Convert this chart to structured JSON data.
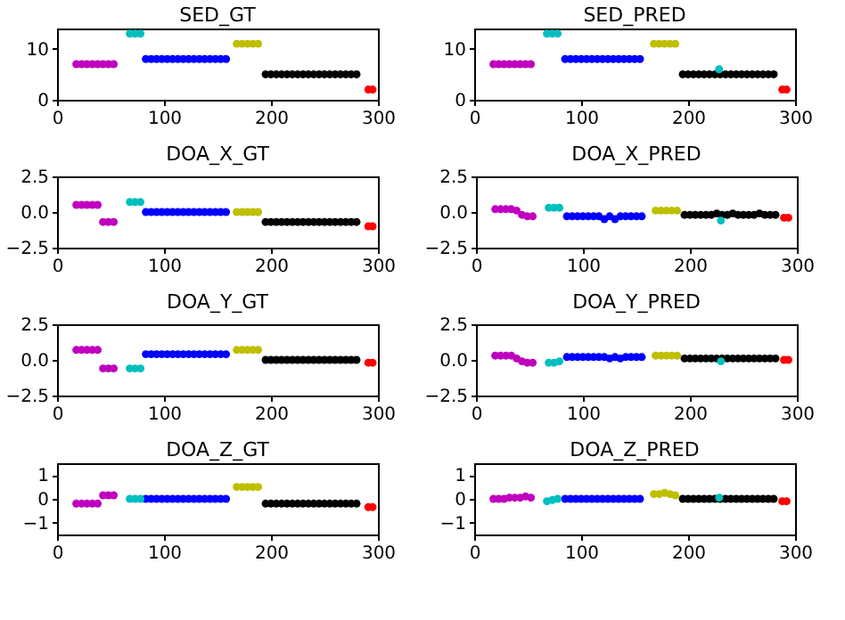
{
  "chart_data": [
    {
      "type": "scatter",
      "title": "SED_GT",
      "marker": "circle",
      "xlim": [
        0,
        300
      ],
      "xticks": [
        0,
        100,
        200,
        300
      ],
      "ylim": [
        0,
        14
      ],
      "yticks": [
        0,
        10
      ],
      "series": [
        {
          "color": "#bf00bf",
          "x": [
            18,
            23,
            28,
            33,
            38,
            43,
            48,
            53
          ],
          "values": [
            7,
            7,
            7,
            7,
            7,
            7,
            7,
            7
          ]
        },
        {
          "color": "#00bfbf",
          "x": [
            68,
            73,
            78
          ],
          "values": [
            13,
            13,
            13
          ]
        },
        {
          "color": "#0000ff",
          "x": [
            83,
            88,
            93,
            98,
            103,
            108,
            113,
            118,
            123,
            128,
            133,
            138,
            143,
            148,
            153,
            158
          ],
          "values": [
            8,
            8,
            8,
            8,
            8,
            8,
            8,
            8,
            8,
            8,
            8,
            8,
            8,
            8,
            8,
            8
          ]
        },
        {
          "color": "#bfbf00",
          "x": [
            168,
            173,
            178,
            183,
            188
          ],
          "values": [
            11,
            11,
            11,
            11,
            11
          ]
        },
        {
          "color": "#000000",
          "x": [
            195,
            200,
            205,
            210,
            215,
            220,
            225,
            230,
            235,
            240,
            245,
            250,
            255,
            260,
            265,
            270,
            275,
            280
          ],
          "values": [
            5,
            5,
            5,
            5,
            5,
            5,
            5,
            5,
            5,
            5,
            5,
            5,
            5,
            5,
            5,
            5,
            5,
            5
          ]
        },
        {
          "color": "#ff0000",
          "x": [
            291,
            295
          ],
          "values": [
            2,
            2
          ]
        }
      ]
    },
    {
      "type": "scatter",
      "title": "SED_PRED",
      "marker": "circle",
      "xlim": [
        0,
        300
      ],
      "xticks": [
        0,
        100,
        200,
        300
      ],
      "ylim": [
        0,
        14
      ],
      "yticks": [
        0,
        10
      ],
      "series": [
        {
          "color": "#bf00bf",
          "x": [
            18,
            23,
            28,
            33,
            38,
            43,
            48,
            53
          ],
          "values": [
            7,
            7,
            7,
            7,
            7,
            7,
            7,
            7
          ]
        },
        {
          "color": "#00bfbf",
          "x": [
            68,
            73,
            78,
            229
          ],
          "values": [
            13,
            13,
            13,
            6
          ]
        },
        {
          "color": "#0000ff",
          "x": [
            85,
            90,
            95,
            100,
            105,
            110,
            115,
            120,
            125,
            130,
            135,
            140,
            145,
            150,
            155
          ],
          "values": [
            8,
            8,
            8,
            8,
            8,
            8,
            8,
            8,
            8,
            8,
            8,
            8,
            8,
            8,
            8
          ]
        },
        {
          "color": "#bfbf00",
          "x": [
            168,
            173,
            178,
            183,
            188
          ],
          "values": [
            11,
            11,
            11,
            11,
            11
          ]
        },
        {
          "color": "#000000",
          "x": [
            195,
            200,
            205,
            210,
            215,
            220,
            225,
            230,
            235,
            240,
            245,
            250,
            255,
            260,
            265,
            270,
            275,
            280
          ],
          "values": [
            5,
            5,
            5,
            5,
            5,
            5,
            5,
            5,
            5,
            5,
            5,
            5,
            5,
            5,
            5,
            5,
            5,
            5
          ]
        },
        {
          "color": "#ff0000",
          "x": [
            288,
            292
          ],
          "values": [
            2,
            2
          ]
        }
      ]
    },
    {
      "type": "scatter",
      "title": "DOA_X_GT",
      "marker": "circle",
      "xlim": [
        0,
        300
      ],
      "xticks": [
        0,
        100,
        200,
        300
      ],
      "ylim": [
        -2.5,
        2.5
      ],
      "yticks": [
        {
          "value": -2.5,
          "label": "−2.5"
        },
        {
          "value": 0,
          "label": "0.0"
        },
        {
          "value": 2.5,
          "label": "2.5"
        }
      ],
      "series": [
        {
          "color": "#bf00bf",
          "x": [
            18,
            23,
            28,
            33,
            38,
            43,
            48,
            53
          ],
          "values": [
            0.5,
            0.5,
            0.5,
            0.5,
            0.5,
            -0.7,
            -0.7,
            -0.7
          ]
        },
        {
          "color": "#00bfbf",
          "x": [
            68,
            73,
            78
          ],
          "values": [
            0.7,
            0.7,
            0.7
          ]
        },
        {
          "color": "#0000ff",
          "x": [
            83,
            88,
            93,
            98,
            103,
            108,
            113,
            118,
            123,
            128,
            133,
            138,
            143,
            148,
            153,
            158
          ],
          "values": [
            0,
            0,
            0,
            0,
            0,
            0,
            0,
            0,
            0,
            0,
            0,
            0,
            0,
            0,
            0,
            0
          ]
        },
        {
          "color": "#bfbf00",
          "x": [
            168,
            173,
            178,
            183,
            188
          ],
          "values": [
            0,
            0,
            0,
            0,
            0
          ]
        },
        {
          "color": "#000000",
          "x": [
            195,
            200,
            205,
            210,
            215,
            220,
            225,
            230,
            235,
            240,
            245,
            250,
            255,
            260,
            265,
            270,
            275,
            280
          ],
          "values": [
            -0.7,
            -0.7,
            -0.7,
            -0.7,
            -0.7,
            -0.7,
            -0.7,
            -0.7,
            -0.7,
            -0.7,
            -0.7,
            -0.7,
            -0.7,
            -0.7,
            -0.7,
            -0.7,
            -0.7,
            -0.7
          ]
        },
        {
          "color": "#ff0000",
          "x": [
            291,
            295
          ],
          "values": [
            -1,
            -1
          ]
        }
      ]
    },
    {
      "type": "scatter",
      "title": "DOA_X_PRED",
      "marker": "circle",
      "xlim": [
        0,
        300
      ],
      "xticks": [
        0,
        100,
        200,
        300
      ],
      "ylim": [
        -2.5,
        2.5
      ],
      "yticks": [
        {
          "value": -2.5,
          "label": "−2.5"
        },
        {
          "value": 0,
          "label": "0.0"
        },
        {
          "value": 2.5,
          "label": "2.5"
        }
      ],
      "series": [
        {
          "color": "#bf00bf",
          "x": [
            18,
            23,
            28,
            33,
            38,
            43,
            48,
            53
          ],
          "values": [
            0.2,
            0.2,
            0.2,
            0.2,
            0.1,
            -0.2,
            -0.3,
            -0.3
          ]
        },
        {
          "color": "#00bfbf",
          "x": [
            68,
            73,
            78,
            229
          ],
          "values": [
            0.3,
            0.3,
            0.3,
            -0.6
          ]
        },
        {
          "color": "#0000ff",
          "x": [
            85,
            90,
            95,
            100,
            105,
            110,
            115,
            120,
            125,
            130,
            135,
            140,
            145,
            150,
            155
          ],
          "values": [
            -0.3,
            -0.3,
            -0.3,
            -0.3,
            -0.3,
            -0.3,
            -0.3,
            -0.5,
            -0.3,
            -0.5,
            -0.3,
            -0.3,
            -0.3,
            -0.3,
            -0.3
          ]
        },
        {
          "color": "#bfbf00",
          "x": [
            168,
            173,
            178,
            183,
            188
          ],
          "values": [
            0.1,
            0.1,
            0.1,
            0.1,
            0.1
          ]
        },
        {
          "color": "#000000",
          "x": [
            195,
            200,
            205,
            210,
            215,
            220,
            225,
            230,
            235,
            240,
            245,
            250,
            255,
            260,
            265,
            270,
            275,
            280
          ],
          "values": [
            -0.2,
            -0.2,
            -0.2,
            -0.2,
            -0.2,
            -0.2,
            -0.1,
            -0.2,
            -0.2,
            -0.1,
            -0.2,
            -0.2,
            -0.2,
            -0.2,
            -0.1,
            -0.2,
            -0.2,
            -0.2
          ]
        },
        {
          "color": "#ff0000",
          "x": [
            288,
            292
          ],
          "values": [
            -0.4,
            -0.4
          ]
        }
      ]
    },
    {
      "type": "scatter",
      "title": "DOA_Y_GT",
      "marker": "circle",
      "xlim": [
        0,
        300
      ],
      "xticks": [
        0,
        100,
        200,
        300
      ],
      "ylim": [
        -2.5,
        2.5
      ],
      "yticks": [
        {
          "value": -2.5,
          "label": "−2.5"
        },
        {
          "value": 0,
          "label": "0.0"
        },
        {
          "value": 2.5,
          "label": "2.5"
        }
      ],
      "series": [
        {
          "color": "#bf00bf",
          "x": [
            18,
            23,
            28,
            33,
            38,
            43,
            48,
            53
          ],
          "values": [
            0.7,
            0.7,
            0.7,
            0.7,
            0.7,
            -0.6,
            -0.6,
            -0.6
          ]
        },
        {
          "color": "#00bfbf",
          "x": [
            68,
            73,
            78
          ],
          "values": [
            -0.6,
            -0.6,
            -0.6
          ]
        },
        {
          "color": "#0000ff",
          "x": [
            83,
            88,
            93,
            98,
            103,
            108,
            113,
            118,
            123,
            128,
            133,
            138,
            143,
            148,
            153,
            158
          ],
          "values": [
            0.4,
            0.4,
            0.4,
            0.4,
            0.4,
            0.4,
            0.4,
            0.4,
            0.4,
            0.4,
            0.4,
            0.4,
            0.4,
            0.4,
            0.4,
            0.4
          ]
        },
        {
          "color": "#bfbf00",
          "x": [
            168,
            173,
            178,
            183,
            188
          ],
          "values": [
            0.7,
            0.7,
            0.7,
            0.7,
            0.7
          ]
        },
        {
          "color": "#000000",
          "x": [
            195,
            200,
            205,
            210,
            215,
            220,
            225,
            230,
            235,
            240,
            245,
            250,
            255,
            260,
            265,
            270,
            275,
            280
          ],
          "values": [
            0,
            0,
            0,
            0,
            0,
            0,
            0,
            0,
            0,
            0,
            0,
            0,
            0,
            0,
            0,
            0,
            0,
            0
          ]
        },
        {
          "color": "#ff0000",
          "x": [
            291,
            295
          ],
          "values": [
            -0.2,
            -0.2
          ]
        }
      ]
    },
    {
      "type": "scatter",
      "title": "DOA_Y_PRED",
      "marker": "circle",
      "xlim": [
        0,
        300
      ],
      "xticks": [
        0,
        100,
        200,
        300
      ],
      "ylim": [
        -2.5,
        2.5
      ],
      "yticks": [
        {
          "value": -2.5,
          "label": "−2.5"
        },
        {
          "value": 0,
          "label": "0.0"
        },
        {
          "value": 2.5,
          "label": "2.5"
        }
      ],
      "series": [
        {
          "color": "#bf00bf",
          "x": [
            18,
            23,
            28,
            33,
            38,
            43,
            48,
            53
          ],
          "values": [
            0.3,
            0.3,
            0.3,
            0.3,
            0.1,
            -0.1,
            -0.2,
            -0.2
          ]
        },
        {
          "color": "#00bfbf",
          "x": [
            68,
            73,
            78,
            229
          ],
          "values": [
            -0.2,
            -0.2,
            -0.1,
            -0.1
          ]
        },
        {
          "color": "#0000ff",
          "x": [
            85,
            90,
            95,
            100,
            105,
            110,
            115,
            120,
            125,
            130,
            135,
            140,
            145,
            150,
            155
          ],
          "values": [
            0.2,
            0.2,
            0.2,
            0.2,
            0.2,
            0.2,
            0.2,
            0.2,
            0.1,
            0.2,
            0.1,
            0.2,
            0.2,
            0.2,
            0.2
          ]
        },
        {
          "color": "#bfbf00",
          "x": [
            168,
            173,
            178,
            183,
            188
          ],
          "values": [
            0.3,
            0.3,
            0.3,
            0.3,
            0.3
          ]
        },
        {
          "color": "#000000",
          "x": [
            195,
            200,
            205,
            210,
            215,
            220,
            225,
            230,
            235,
            240,
            245,
            250,
            255,
            260,
            265,
            270,
            275,
            280
          ],
          "values": [
            0.1,
            0.1,
            0.1,
            0.1,
            0.1,
            0.1,
            0.1,
            0.1,
            0.1,
            0.1,
            0.1,
            0.1,
            0.1,
            0.1,
            0.1,
            0.1,
            0.1,
            0.1
          ]
        },
        {
          "color": "#ff0000",
          "x": [
            288,
            292
          ],
          "values": [
            0,
            0
          ]
        }
      ]
    },
    {
      "type": "scatter",
      "title": "DOA_Z_GT",
      "marker": "circle",
      "xlim": [
        0,
        300
      ],
      "xticks": [
        0,
        100,
        200,
        300
      ],
      "ylim": [
        -1.5,
        1.5
      ],
      "yticks": [
        {
          "value": -1,
          "label": "−1"
        },
        0,
        1
      ],
      "series": [
        {
          "color": "#bf00bf",
          "x": [
            18,
            23,
            28,
            33,
            38,
            43,
            48,
            53
          ],
          "values": [
            -0.2,
            -0.2,
            -0.2,
            -0.2,
            -0.2,
            0.15,
            0.15,
            0.15
          ]
        },
        {
          "color": "#00bfbf",
          "x": [
            68,
            73,
            78
          ],
          "values": [
            0,
            0,
            0
          ]
        },
        {
          "color": "#0000ff",
          "x": [
            83,
            88,
            93,
            98,
            103,
            108,
            113,
            118,
            123,
            128,
            133,
            138,
            143,
            148,
            153,
            158
          ],
          "values": [
            0,
            0,
            0,
            0,
            0,
            0,
            0,
            0,
            0,
            0,
            0,
            0,
            0,
            0,
            0,
            0
          ]
        },
        {
          "color": "#bfbf00",
          "x": [
            168,
            173,
            178,
            183,
            188
          ],
          "values": [
            0.5,
            0.5,
            0.5,
            0.5,
            0.5
          ]
        },
        {
          "color": "#000000",
          "x": [
            195,
            200,
            205,
            210,
            215,
            220,
            225,
            230,
            235,
            240,
            245,
            250,
            255,
            260,
            265,
            270,
            275,
            280
          ],
          "values": [
            -0.2,
            -0.2,
            -0.2,
            -0.2,
            -0.2,
            -0.2,
            -0.2,
            -0.2,
            -0.2,
            -0.2,
            -0.2,
            -0.2,
            -0.2,
            -0.2,
            -0.2,
            -0.2,
            -0.2,
            -0.2
          ]
        },
        {
          "color": "#ff0000",
          "x": [
            291,
            295
          ],
          "values": [
            -0.35,
            -0.35
          ]
        }
      ]
    },
    {
      "type": "scatter",
      "title": "DOA_Z_PRED",
      "marker": "circle",
      "xlim": [
        0,
        300
      ],
      "xticks": [
        0,
        100,
        200,
        300
      ],
      "ylim": [
        -1.5,
        1.5
      ],
      "yticks": [
        {
          "value": -1,
          "label": "−1"
        },
        0,
        1
      ],
      "series": [
        {
          "color": "#bf00bf",
          "x": [
            18,
            23,
            28,
            33,
            38,
            43,
            48,
            53
          ],
          "values": [
            0,
            0,
            0,
            0.05,
            0.05,
            0.05,
            0.1,
            0.05
          ]
        },
        {
          "color": "#00bfbf",
          "x": [
            68,
            73,
            78,
            229
          ],
          "values": [
            -0.1,
            -0.05,
            0,
            0.05
          ]
        },
        {
          "color": "#0000ff",
          "x": [
            85,
            90,
            95,
            100,
            105,
            110,
            115,
            120,
            125,
            130,
            135,
            140,
            145,
            150,
            155
          ],
          "values": [
            0,
            0,
            0,
            0,
            0,
            0,
            0,
            0,
            0,
            0,
            0,
            0,
            0,
            0,
            0
          ]
        },
        {
          "color": "#bfbf00",
          "x": [
            168,
            173,
            178,
            183,
            188
          ],
          "values": [
            0.2,
            0.2,
            0.25,
            0.2,
            0.15
          ]
        },
        {
          "color": "#000000",
          "x": [
            195,
            200,
            205,
            210,
            215,
            220,
            225,
            230,
            235,
            240,
            245,
            250,
            255,
            260,
            265,
            270,
            275,
            280
          ],
          "values": [
            0,
            0,
            0,
            0,
            0,
            0,
            0,
            0,
            0,
            0,
            0,
            0,
            0,
            0,
            0,
            0,
            0,
            0
          ]
        },
        {
          "color": "#ff0000",
          "x": [
            288,
            292
          ],
          "values": [
            -0.1,
            -0.1
          ]
        }
      ]
    }
  ]
}
